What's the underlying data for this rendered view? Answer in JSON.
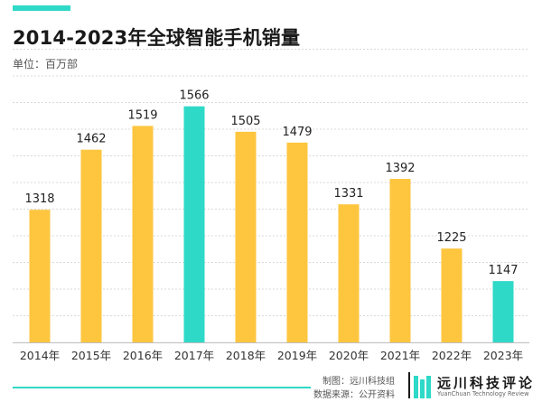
{
  "chart_data": {
    "type": "bar",
    "title": "2014-2023年全球智能手机销量",
    "unit_label": "单位：百万部",
    "categories": [
      "2014年",
      "2015年",
      "2016年",
      "2017年",
      "2018年",
      "2019年",
      "2020年",
      "2021年",
      "2022年",
      "2023年"
    ],
    "values": [
      1318,
      1462,
      1519,
      1566,
      1505,
      1479,
      1331,
      1392,
      1225,
      1147
    ],
    "highlighted": [
      "2017年",
      "2023年"
    ],
    "ylim": [
      1000,
      1600
    ],
    "grid": true,
    "colors": {
      "bar": "#fec63f",
      "highlight": "#2ed9c8",
      "grid": "#d9d9d9",
      "axis": "#bdbdbd"
    }
  },
  "footer": {
    "credit_maker": "制图：远川科技组",
    "credit_source": "数据来源：公开资料"
  },
  "logo": {
    "name_cn": "远川科技评论",
    "name_en": "YuanChuan Technology Review"
  }
}
